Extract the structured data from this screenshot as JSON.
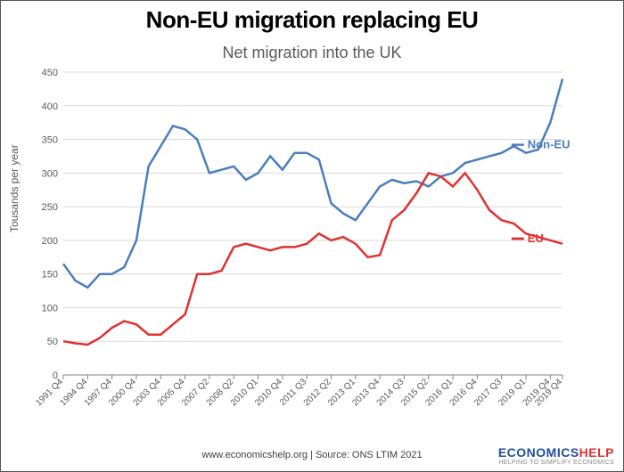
{
  "main_title": "Non-EU migration replacing EU",
  "main_title_fontsize": 26,
  "main_title_color": "#000000",
  "sub_title": "Net migration into the UK",
  "sub_title_fontsize": 18,
  "sub_title_color": "#595959",
  "y_axis_label": "Tousands per year",
  "footer_text": "www.economicshelp.org | Source: ONS LTIM 2021",
  "brand": {
    "main": "ECONOMICS",
    "accent": "HELP",
    "main_color": "#1f4e9c",
    "accent_color": "#e03131",
    "sub": "HELPING TO SIMPLIFY ECONOMICS"
  },
  "chart": {
    "type": "line",
    "background_color": "#ffffff",
    "grid_color": "#d9d9d9",
    "axis_color": "#808080",
    "ylim": [
      0,
      450
    ],
    "ytick_step": 50,
    "yticks": [
      0,
      50,
      100,
      150,
      200,
      250,
      300,
      350,
      400,
      450
    ],
    "x_labels": [
      "1991 Q4",
      "1994 Q4",
      "1997 Q4",
      "2000 Q4",
      "2003 Q4",
      "2005 Q4",
      "2007 Q2",
      "2008 Q2",
      "2010 Q1",
      "2010 Q4",
      "2011 Q3",
      "2012 Q2",
      "2013 Q1",
      "2013 Q4",
      "2014 Q3",
      "2015 Q2",
      "2016 Q1",
      "2016 Q4",
      "2017 Q3",
      "2019 Q1",
      "2019 Q4",
      "2019 Q4"
    ],
    "x_positions": [
      0,
      1,
      2,
      3,
      4,
      5,
      6,
      7,
      8,
      9,
      10,
      11,
      12,
      13,
      14,
      15,
      16,
      17,
      18,
      19,
      20,
      21
    ],
    "series": [
      {
        "name": "Non-EU",
        "color": "#4a7ebb",
        "line_width": 2.5,
        "legend_x": 0.93,
        "legend_y": 0.24,
        "values": [
          165,
          140,
          130,
          150,
          150,
          160,
          200,
          310,
          340,
          370,
          365,
          350,
          300,
          305,
          310,
          290,
          300,
          325,
          305,
          330,
          330,
          320,
          255,
          240,
          230,
          255,
          280,
          290,
          285,
          288,
          280,
          295,
          300,
          315,
          320,
          325,
          330,
          340,
          330,
          335,
          375,
          440
        ]
      },
      {
        "name": "EU",
        "color": "#e03131",
        "line_width": 2.8,
        "legend_x": 0.93,
        "legend_y": 0.55,
        "values": [
          50,
          47,
          45,
          55,
          70,
          80,
          75,
          60,
          60,
          75,
          90,
          150,
          150,
          155,
          190,
          195,
          190,
          185,
          190,
          190,
          195,
          210,
          200,
          205,
          195,
          175,
          178,
          230,
          245,
          270,
          300,
          295,
          280,
          300,
          275,
          245,
          230,
          225,
          210,
          205,
          200,
          195
        ]
      }
    ],
    "n_points": 42,
    "x_tick_indices": [
      0,
      2,
      4,
      6,
      8,
      10,
      12,
      14,
      16,
      18,
      20,
      22,
      24,
      26,
      28,
      30,
      32,
      34,
      36,
      38,
      40,
      41
    ]
  }
}
